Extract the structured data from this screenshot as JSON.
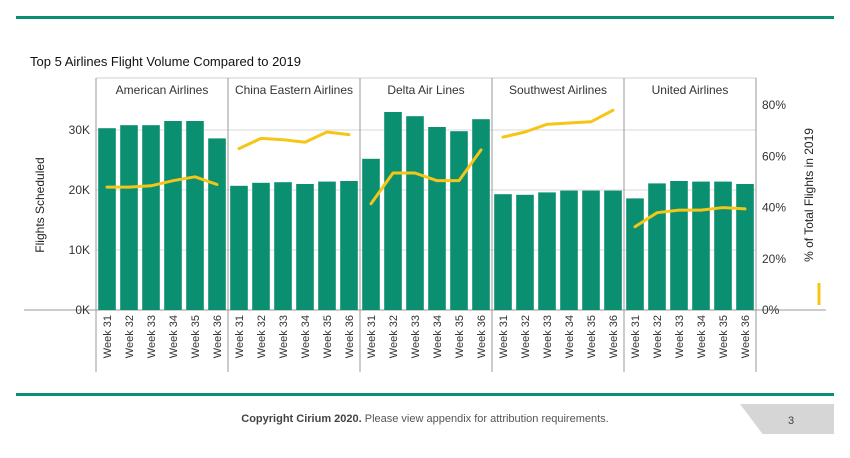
{
  "footer": {
    "copyright": "Copyright Cirium 2020.",
    "note": " Please view appendix for attribution requirements."
  },
  "page_number": "3",
  "colors": {
    "bar": "#0a8f70",
    "line": "#f5c518",
    "accent": "#0a8f70",
    "grid": "#d9d9d9"
  },
  "chart_data": {
    "type": "bar",
    "title": "Top 5 Airlines Flight Volume Compared to 2019",
    "ylabel": "Flights Scheduled",
    "y2label": "% of Total Flights in 2019",
    "ylim": [
      0,
      35000
    ],
    "y2lim": [
      0,
      0.82
    ],
    "yticks": [
      0,
      10000,
      20000,
      30000
    ],
    "yticklabels": [
      "0K",
      "10K",
      "20K",
      "30K"
    ],
    "y2ticks": [
      0,
      0.2,
      0.4,
      0.6,
      0.8
    ],
    "y2ticklabels": [
      "0%",
      "20%",
      "40%",
      "60%",
      "80%"
    ],
    "categories": [
      "Week 31",
      "Week 32",
      "Week 33",
      "Week 34",
      "Week 35",
      "Week 36"
    ],
    "series": [
      {
        "name": "American Airlines",
        "values": [
          30300,
          30800,
          30800,
          31500,
          31500,
          28600
        ],
        "pct": [
          0.48,
          0.48,
          0.485,
          0.505,
          0.52,
          0.49
        ]
      },
      {
        "name": "China Eastern Airlines",
        "values": [
          20700,
          21200,
          21300,
          21000,
          21400,
          21500
        ],
        "pct": [
          0.63,
          0.67,
          0.665,
          0.655,
          0.695,
          0.685
        ]
      },
      {
        "name": "Delta Air Lines",
        "values": [
          25200,
          33000,
          32300,
          30500,
          29800,
          31800
        ],
        "pct": [
          0.415,
          0.535,
          0.535,
          0.505,
          0.505,
          0.625
        ]
      },
      {
        "name": "Southwest Airlines",
        "values": [
          19300,
          19200,
          19600,
          19900,
          19900,
          19900
        ],
        "pct": [
          0.675,
          0.695,
          0.725,
          0.73,
          0.735,
          0.78
        ]
      },
      {
        "name": "United Airlines",
        "values": [
          18600,
          21100,
          21500,
          21400,
          21400,
          21000
        ],
        "pct": [
          0.325,
          0.38,
          0.39,
          0.39,
          0.4,
          0.395
        ]
      }
    ],
    "grid": true,
    "legend": "right"
  }
}
